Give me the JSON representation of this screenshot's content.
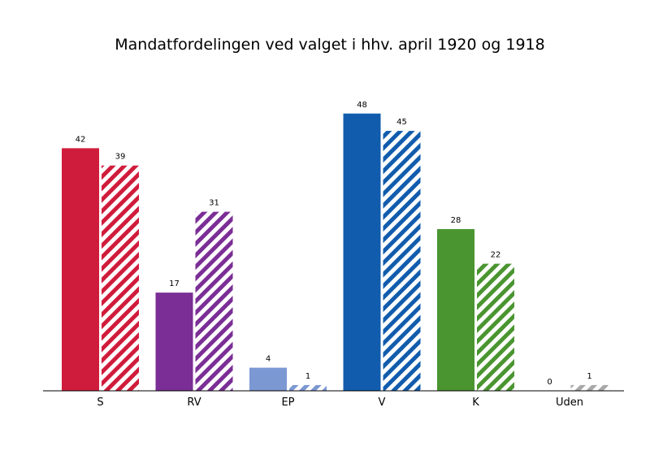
{
  "chart_data": {
    "type": "bar",
    "title": "Mandatfordelingen ved valget i hhv. april 1920 og 1918",
    "categories": [
      "S",
      "RV",
      "EP",
      "V",
      "K",
      "Uden"
    ],
    "series": [
      {
        "values": [
          42,
          17,
          4,
          48,
          28,
          0
        ],
        "style": "solid"
      },
      {
        "values": [
          39,
          31,
          1,
          45,
          22,
          1
        ],
        "style": "hatched"
      }
    ],
    "colors": [
      "#d01c3c",
      "#7b2e96",
      "#7b98d3",
      "#115cad",
      "#4a9530",
      "#a9a9a9"
    ],
    "ylim": [
      0,
      48
    ],
    "grid": false,
    "legend": "none"
  }
}
